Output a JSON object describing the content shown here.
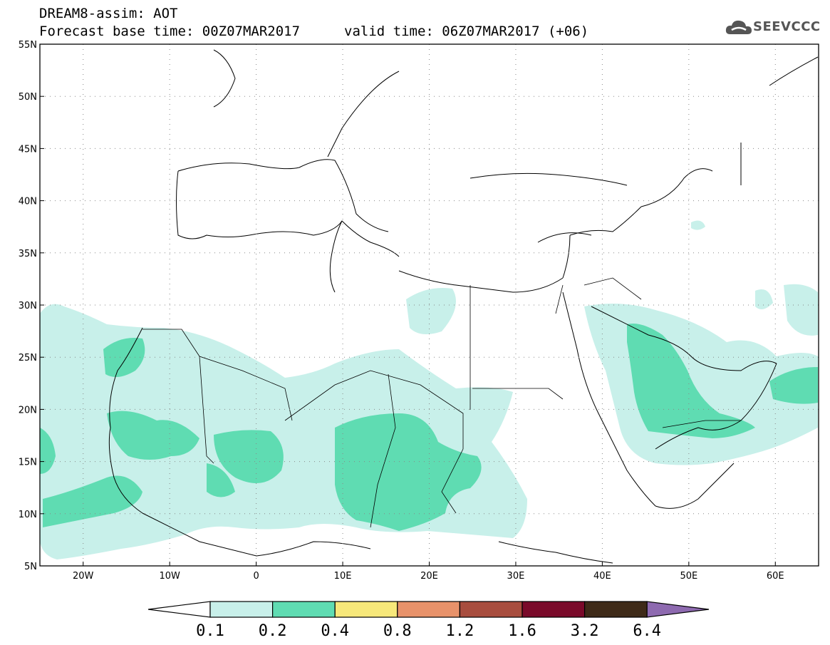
{
  "header": {
    "title": "DREAM8-assim: AOT",
    "base_time": "Forecast base time: 00Z07MAR2017",
    "valid_time": "valid time: 06Z07MAR2017 (+06)",
    "logo_text": "SEEVCCC"
  },
  "map": {
    "lat_labels": [
      "55N",
      "50N",
      "45N",
      "40N",
      "35N",
      "30N",
      "25N",
      "20N",
      "15N",
      "10N",
      "5N"
    ],
    "lon_labels": [
      "20W",
      "10W",
      "0",
      "10E",
      "20E",
      "30E",
      "40E",
      "50E",
      "60E"
    ],
    "lat_values": [
      55,
      50,
      45,
      40,
      35,
      30,
      25,
      20,
      15,
      10,
      5
    ],
    "lon_values": [
      -20,
      -10,
      0,
      10,
      20,
      30,
      40,
      50,
      60
    ],
    "lon_range": [
      -25,
      65
    ],
    "lat_range": [
      5,
      55
    ]
  },
  "colorbar": {
    "labels": [
      "0.1",
      "0.2",
      "0.4",
      "0.8",
      "1.2",
      "1.6",
      "3.2",
      "6.4"
    ],
    "colors": [
      "#ffffff",
      "#c8f0ea",
      "#5fdcb2",
      "#f7e87a",
      "#e8926a",
      "#a84d3e",
      "#7a0a2a",
      "#3e2a18",
      "#8e6ab0"
    ]
  }
}
